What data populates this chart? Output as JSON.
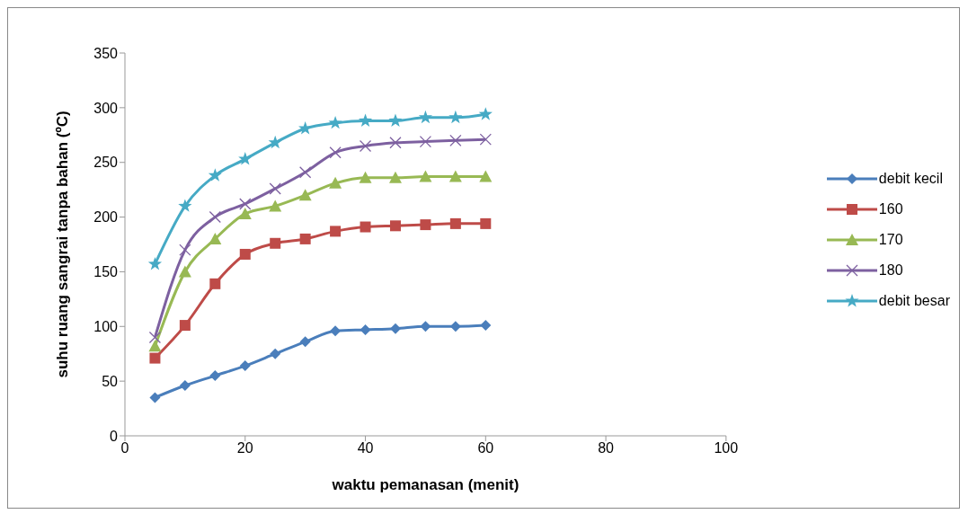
{
  "chart_data": {
    "type": "line",
    "xlabel": "waktu pemanasan (menit)",
    "ylabel": "suhu ruang sangrai tanpa bahan  (ºC)",
    "x": [
      5,
      10,
      15,
      20,
      25,
      30,
      35,
      40,
      45,
      50,
      55,
      60
    ],
    "xlim": [
      0,
      100
    ],
    "xticks": [
      0,
      20,
      40,
      60,
      80,
      100
    ],
    "ylim": [
      0,
      350
    ],
    "yticks": [
      0,
      50,
      100,
      150,
      200,
      250,
      300,
      350
    ],
    "grid": false,
    "legend": "right",
    "series": [
      {
        "name": "debit kecil",
        "color": "#4a7ebb",
        "marker": "diamond",
        "values": [
          35,
          46,
          55,
          64,
          75,
          86,
          96,
          97,
          98,
          100,
          100,
          101
        ]
      },
      {
        "name": "160",
        "color": "#be4b48",
        "marker": "square",
        "values": [
          71,
          101,
          139,
          166,
          176,
          180,
          187,
          191,
          192,
          193,
          194,
          194
        ]
      },
      {
        "name": "170",
        "color": "#98b954",
        "marker": "triangle",
        "values": [
          82,
          150,
          180,
          203,
          210,
          220,
          231,
          236,
          236,
          237,
          237,
          237
        ]
      },
      {
        "name": "180",
        "color": "#7d60a0",
        "marker": "cross",
        "values": [
          90,
          170,
          200,
          212,
          226,
          241,
          259,
          265,
          268,
          269,
          270,
          271
        ]
      },
      {
        "name": "debit besar",
        "color": "#46aac5",
        "marker": "star",
        "values": [
          157,
          210,
          238,
          253,
          268,
          281,
          286,
          288,
          288,
          291,
          291,
          294
        ]
      }
    ]
  }
}
